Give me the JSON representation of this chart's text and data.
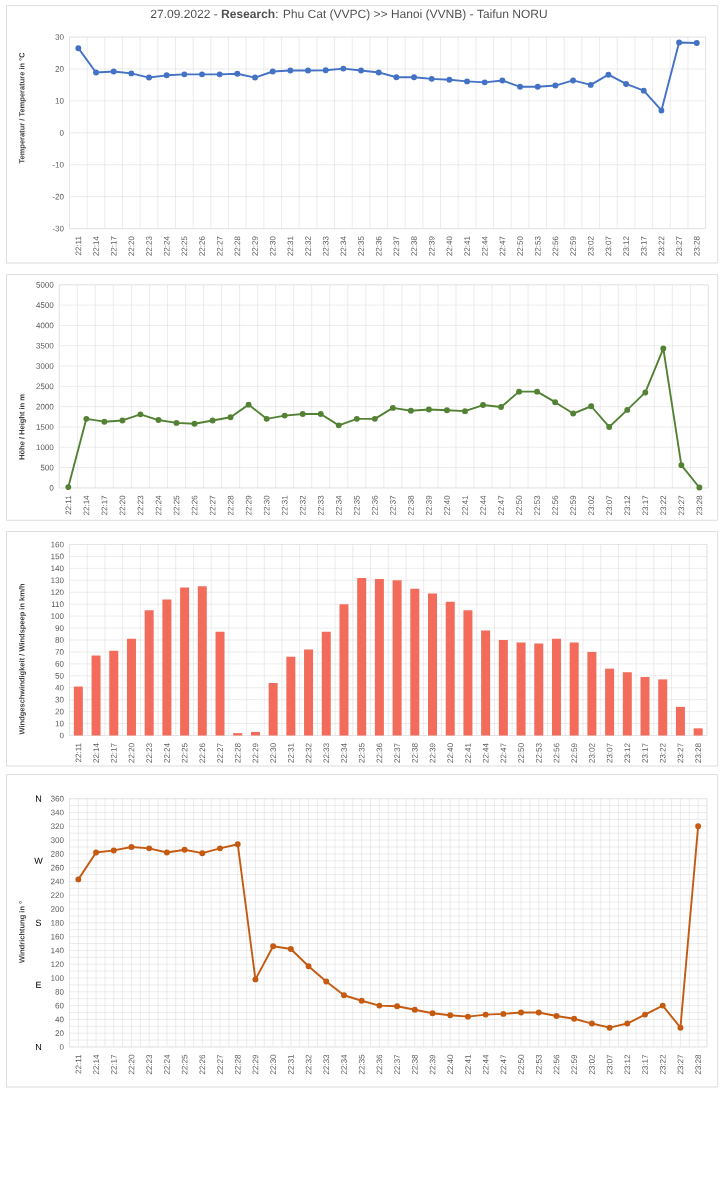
{
  "chart_data": [
    {
      "type": "line",
      "title": "27.09.2022 - **Research**: Phu Cat (VVPC) >> Hanoi (VVNB) - Taifun NORU",
      "ylabel": "Temperatur / Temperature in °C",
      "categories": [
        "22:11",
        "22:14",
        "22:17",
        "22:20",
        "22:23",
        "22:24",
        "22:25",
        "22:26",
        "22:27",
        "22:28",
        "22:29",
        "22:30",
        "22:31",
        "22:32",
        "22:33",
        "22:34",
        "22:35",
        "22:36",
        "22:37",
        "22:38",
        "22:39",
        "22:40",
        "22:41",
        "22:44",
        "22:47",
        "22:50",
        "22:53",
        "22:56",
        "22:59",
        "23:02",
        "23:07",
        "23:12",
        "23:17",
        "23:22",
        "23:27",
        "23:28"
      ],
      "values": [
        26.5,
        18.9,
        19.2,
        18.6,
        17.3,
        18.0,
        18.3,
        18.3,
        18.3,
        18.5,
        17.3,
        19.2,
        19.5,
        19.5,
        19.6,
        20.1,
        19.5,
        18.9,
        17.4,
        17.4,
        16.9,
        16.6,
        16.1,
        15.8,
        16.4,
        14.4,
        14.4,
        14.8,
        16.4,
        15.0,
        18.2,
        15.3,
        13.2,
        7.0,
        28.3,
        28.1
      ],
      "color": "#4472c4",
      "marker": "circle",
      "grid": true,
      "ylim": [
        -30,
        30
      ],
      "yticks": [
        -30,
        -20,
        -10,
        0,
        10,
        20,
        30
      ]
    },
    {
      "type": "line",
      "ylabel": "Höhe / Height in m",
      "categories": [
        "22:11",
        "22:14",
        "22:17",
        "22:20",
        "22:23",
        "22:24",
        "22:25",
        "22:26",
        "22:27",
        "22:28",
        "22:29",
        "22:30",
        "22:31",
        "22:32",
        "22:33",
        "22:34",
        "22:35",
        "22:36",
        "22:37",
        "22:38",
        "22:39",
        "22:40",
        "22:41",
        "22:44",
        "22:47",
        "22:50",
        "22:53",
        "22:56",
        "22:59",
        "23:02",
        "23:07",
        "23:12",
        "23:17",
        "23:22",
        "23:27",
        "23:28"
      ],
      "values": [
        20,
        1700,
        1630,
        1660,
        1810,
        1670,
        1600,
        1580,
        1660,
        1740,
        2050,
        1700,
        1780,
        1820,
        1820,
        1540,
        1700,
        1700,
        1970,
        1900,
        1930,
        1910,
        1890,
        2040,
        1990,
        2370,
        2370,
        2110,
        1830,
        2010,
        1500,
        1920,
        2350,
        3430,
        560,
        10
      ],
      "color": "#548235",
      "marker": "circle",
      "grid": true,
      "ylim": [
        0,
        5000
      ],
      "yticks": [
        0,
        500,
        1000,
        1500,
        2000,
        2500,
        3000,
        3500,
        4000,
        4500,
        5000
      ]
    },
    {
      "type": "bar",
      "ylabel": "Windgeschwindigkeit / Windspeep in km/h",
      "categories": [
        "22:11",
        "22:14",
        "22:17",
        "22:20",
        "22:23",
        "22:24",
        "22:25",
        "22:26",
        "22:27",
        "22:28",
        "22:29",
        "22:30",
        "22:31",
        "22:32",
        "22:33",
        "22:34",
        "22:35",
        "22:36",
        "22:37",
        "22:38",
        "22:39",
        "22:40",
        "22:41",
        "22:44",
        "22:47",
        "22:50",
        "22:53",
        "22:56",
        "22:59",
        "23:02",
        "23:07",
        "23:12",
        "23:17",
        "23:22",
        "23:27",
        "23:28"
      ],
      "values": [
        41,
        67,
        71,
        81,
        105,
        114,
        124,
        125,
        87,
        2,
        3,
        44,
        66,
        72,
        87,
        110,
        132,
        131,
        130,
        123,
        119,
        112,
        105,
        88,
        80,
        78,
        77,
        81,
        78,
        70,
        56,
        53,
        49,
        47,
        24,
        6
      ],
      "color": "#f26b5b",
      "grid": true,
      "ylim": [
        0,
        160
      ],
      "yticks": [
        0,
        10,
        20,
        30,
        40,
        50,
        60,
        70,
        80,
        90,
        100,
        110,
        120,
        130,
        140,
        150,
        160
      ]
    },
    {
      "type": "line",
      "ylabel": "Windrichtung in °",
      "categories": [
        "22:11",
        "22:14",
        "22:17",
        "22:20",
        "22:23",
        "22:24",
        "22:25",
        "22:26",
        "22:27",
        "22:28",
        "22:29",
        "22:30",
        "22:31",
        "22:32",
        "22:33",
        "22:34",
        "22:35",
        "22:36",
        "22:37",
        "22:38",
        "22:39",
        "22:40",
        "22:41",
        "22:44",
        "22:47",
        "22:50",
        "22:53",
        "22:56",
        "22:59",
        "23:02",
        "23:07",
        "23:12",
        "23:17",
        "23:22",
        "23:27",
        "23:28"
      ],
      "values": [
        243,
        282,
        285,
        290,
        288,
        282,
        286,
        281,
        288,
        294,
        98,
        146,
        142,
        117,
        95,
        75,
        67,
        60,
        59,
        54,
        49,
        46,
        44,
        47,
        48,
        50,
        50,
        45,
        41,
        34,
        28,
        34,
        47,
        60,
        28,
        320
      ],
      "color": "#c55a11",
      "marker": "circle",
      "grid": true,
      "ylim": [
        0,
        360
      ],
      "yticks": [
        0,
        20,
        40,
        60,
        80,
        100,
        120,
        140,
        160,
        180,
        200,
        220,
        240,
        260,
        280,
        300,
        320,
        340,
        360
      ],
      "annotations": [
        "N",
        "W",
        "S",
        "E",
        "N"
      ]
    }
  ]
}
